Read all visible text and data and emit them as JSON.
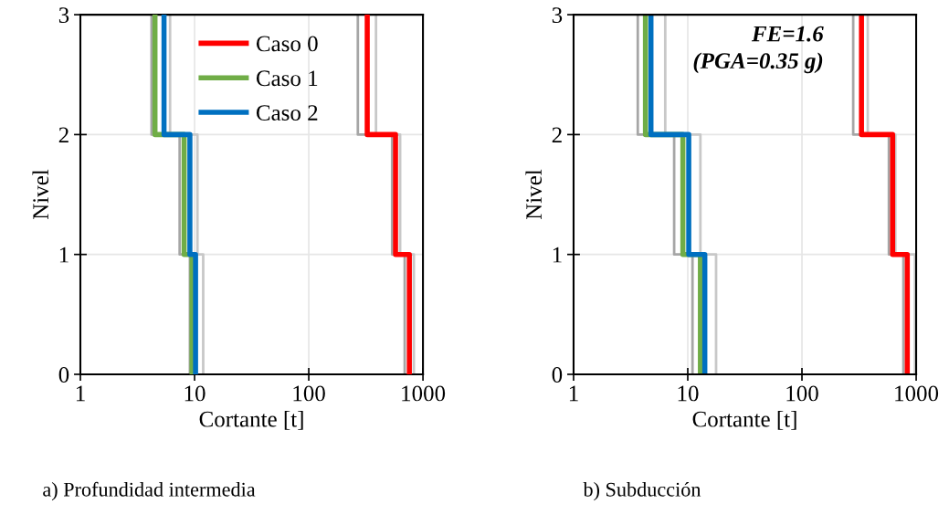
{
  "chart_data": [
    {
      "type": "line",
      "title": "a) Profundidad intermedia",
      "xlabel": "Cortante [t]",
      "ylabel": "Nivel",
      "log": "x",
      "xlim": [
        1,
        1000
      ],
      "xticks": [
        1,
        10,
        100,
        1000
      ],
      "ylim": [
        0,
        3
      ],
      "yticks": [
        0,
        1,
        2,
        3
      ],
      "grid": true,
      "legend": "top",
      "marker": "none",
      "line_style": "solid",
      "series": [
        {
          "color": "#a6a6a6",
          "x": [
            9.1,
            9.1,
            7.4,
            7.4,
            4.2,
            4.2
          ],
          "values": [
            0,
            1,
            1,
            2,
            2,
            3
          ]
        },
        {
          "color": "#c8c8c8",
          "x": [
            11.9,
            11.9,
            10.6,
            10.6,
            6.1,
            6.1
          ],
          "values": [
            0,
            1,
            1,
            2,
            2,
            3
          ]
        },
        {
          "color": "#a6a6a6",
          "x": [
            692,
            692,
            537,
            537,
            269,
            269
          ],
          "values": [
            0,
            1,
            1,
            2,
            2,
            3
          ]
        },
        {
          "color": "#c8c8c8",
          "x": [
            832,
            832,
            631,
            631,
            388,
            388
          ],
          "values": [
            0,
            1,
            1,
            2,
            2,
            3
          ]
        },
        {
          "name": "Caso 0",
          "color": "#ff0000",
          "x": [
            760,
            760,
            575,
            575,
            325,
            325
          ],
          "values": [
            0,
            1,
            1,
            2,
            2,
            3
          ]
        },
        {
          "name": "Caso 1",
          "color": "#70ad47",
          "x": [
            9.5,
            9.5,
            8.1,
            8.1,
            4.5,
            4.5
          ],
          "values": [
            0,
            1,
            1,
            2,
            2,
            3
          ]
        },
        {
          "name": "Caso 2",
          "color": "#0070c0",
          "x": [
            10.2,
            10.2,
            9.1,
            9.1,
            5.4,
            5.4
          ],
          "values": [
            0,
            1,
            1,
            2,
            2,
            3
          ]
        }
      ]
    },
    {
      "type": "line",
      "title": "b) Subducción",
      "xlabel": "Cortante [t]",
      "ylabel": "Nivel",
      "log": "x",
      "xlim": [
        1,
        1000
      ],
      "xticks": [
        1,
        10,
        100,
        1000
      ],
      "ylim": [
        0,
        3
      ],
      "yticks": [
        0,
        1,
        2,
        3
      ],
      "grid": true,
      "marker": "none",
      "line_style": "solid",
      "annotations": [
        "FE=1.6\n(PGA=0.35 g)"
      ],
      "series": [
        {
          "color": "#a6a6a6",
          "x": [
            11.0,
            11.0,
            7.6,
            7.6,
            3.65,
            3.65
          ],
          "values": [
            0,
            1,
            1,
            2,
            2,
            3
          ]
        },
        {
          "color": "#c8c8c8",
          "x": [
            17.7,
            17.7,
            12.9,
            12.9,
            6.35,
            6.35
          ],
          "values": [
            0,
            1,
            1,
            2,
            2,
            3
          ]
        },
        {
          "color": "#a6a6a6",
          "x": [
            773,
            773,
            577,
            577,
            281,
            281
          ],
          "values": [
            0,
            1,
            1,
            2,
            2,
            3
          ]
        },
        {
          "color": "#c8c8c8",
          "x": [
            976,
            976,
            657,
            657,
            377,
            377
          ],
          "values": [
            0,
            1,
            1,
            2,
            2,
            3
          ]
        },
        {
          "color": "#ff0000",
          "x": [
            836,
            836,
            622,
            622,
            332,
            332
          ],
          "values": [
            0,
            1,
            1,
            2,
            2,
            3
          ]
        },
        {
          "color": "#70ad47",
          "x": [
            12.9,
            12.9,
            9.06,
            9.06,
            4.26,
            4.26
          ],
          "values": [
            0,
            1,
            1,
            2,
            2,
            3
          ]
        },
        {
          "color": "#0070c0",
          "x": [
            14.1,
            14.1,
            10.2,
            10.2,
            4.76,
            4.76
          ],
          "values": [
            0,
            1,
            1,
            2,
            2,
            3
          ]
        }
      ]
    }
  ]
}
